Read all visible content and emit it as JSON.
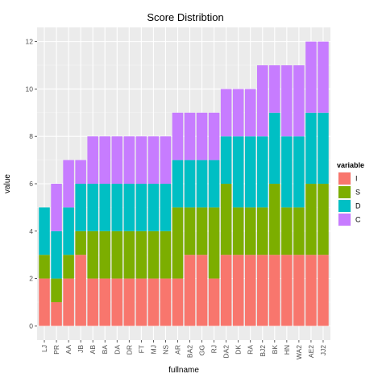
{
  "chart_data": {
    "type": "bar",
    "stacked": true,
    "title": "Score Distribtion",
    "xlabel": "fullname",
    "ylabel": "value",
    "ylim": [
      -0.6,
      12.6
    ],
    "yticks": [
      0,
      2,
      4,
      6,
      8,
      10,
      12
    ],
    "grid": true,
    "legend_position": "right",
    "legend_title": "variable",
    "categories": [
      "LJ",
      "PR",
      "AA",
      "JB",
      "AB",
      "BA",
      "DA",
      "DR",
      "FT",
      "MJ",
      "NS",
      "AR",
      "BA2",
      "GG",
      "RJ",
      "DA2",
      "DK",
      "RA",
      "BJ2",
      "BK",
      "HN",
      "WA2",
      "AE2",
      "JJ2"
    ],
    "series": [
      {
        "name": "I",
        "color": "#F8766D",
        "values": [
          2,
          1,
          2,
          3,
          2,
          2,
          2,
          2,
          2,
          2,
          2,
          2,
          3,
          3,
          2,
          3,
          3,
          3,
          3,
          3,
          3,
          3,
          3,
          3
        ]
      },
      {
        "name": "S",
        "color": "#7CAE00",
        "values": [
          1,
          1,
          1,
          1,
          2,
          2,
          2,
          2,
          2,
          2,
          2,
          3,
          2,
          2,
          3,
          3,
          2,
          2,
          2,
          3,
          2,
          2,
          3,
          3
        ]
      },
      {
        "name": "D",
        "color": "#00BFC4",
        "values": [
          2,
          2,
          2,
          2,
          2,
          2,
          2,
          2,
          2,
          2,
          2,
          2,
          2,
          2,
          2,
          2,
          3,
          3,
          3,
          3,
          3,
          3,
          3,
          3
        ]
      },
      {
        "name": "C",
        "color": "#C77CFF",
        "values": [
          0,
          2,
          2,
          1,
          2,
          2,
          2,
          2,
          2,
          2,
          2,
          2,
          2,
          2,
          2,
          2,
          2,
          2,
          3,
          2,
          3,
          3,
          3,
          3
        ]
      }
    ]
  }
}
